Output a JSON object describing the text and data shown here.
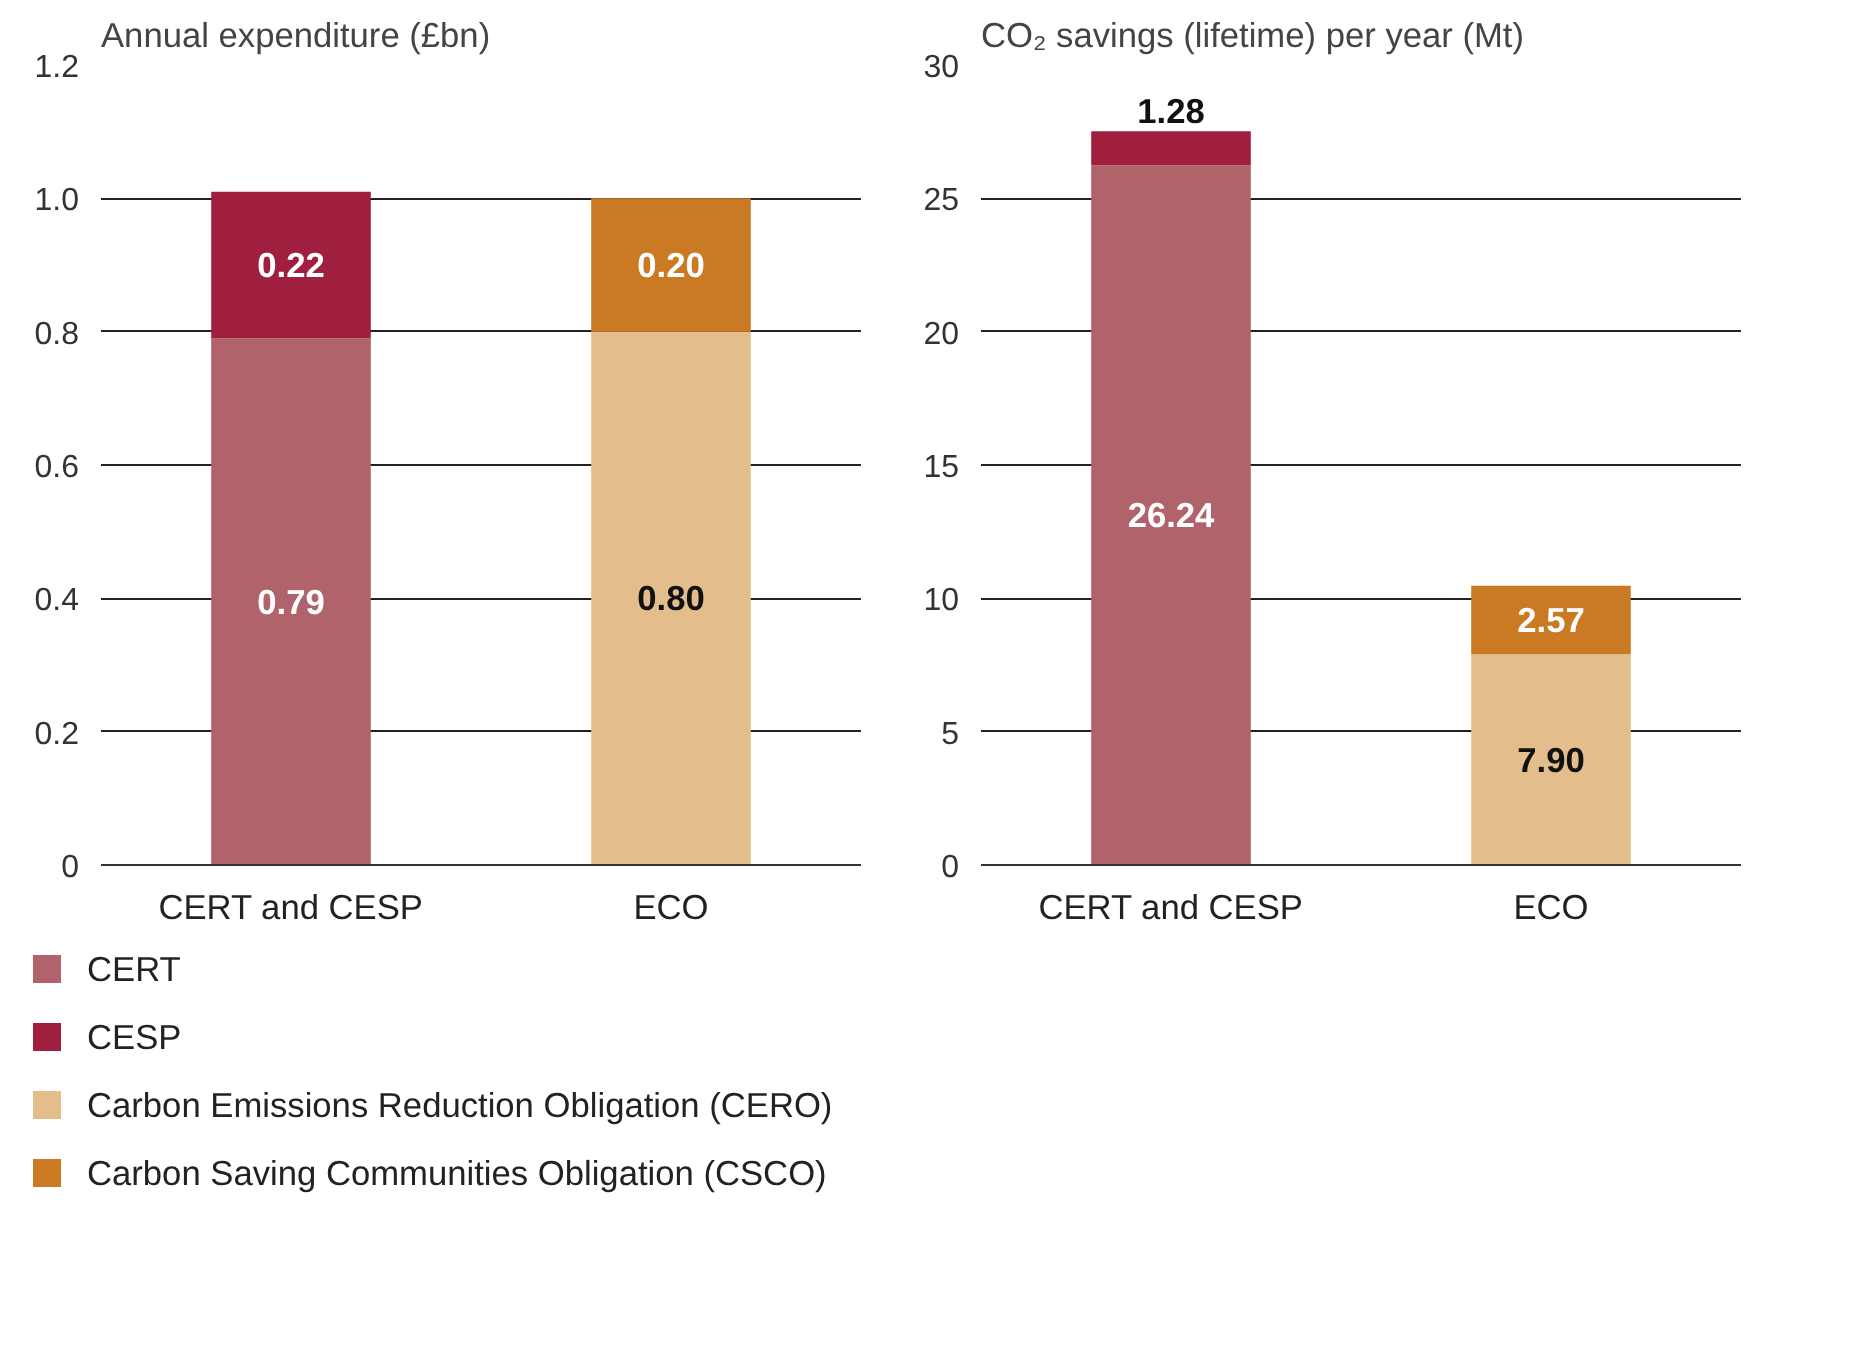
{
  "chart_data": [
    {
      "type": "bar",
      "stacked": true,
      "ylabel": "Annual expenditure (£bn)",
      "categories": [
        "CERT and CESP",
        "ECO"
      ],
      "ylim": [
        0,
        1.2
      ],
      "yticks": [
        0,
        0.2,
        0.4,
        0.6,
        0.8,
        {
          "value": 1,
          "label": "1.0"
        },
        1.2
      ],
      "grid": "y",
      "legend": "bottom",
      "series": [
        {
          "name": "CERT",
          "color": "#b0636a",
          "values": [
            0.79,
            null
          ],
          "value_labels": [
            "0.79",
            null
          ]
        },
        {
          "name": "CESP",
          "color": "#a01f3f",
          "values": [
            0.22,
            null
          ],
          "value_labels": [
            "0.22",
            null
          ]
        },
        {
          "name": "Carbon Emissions Reduction Obligation (CERO)",
          "color": "#e3bd8b",
          "values": [
            null,
            0.8
          ],
          "value_labels": [
            null,
            "0.80"
          ]
        },
        {
          "name": "Carbon Saving Communities Obligation (CSCO)",
          "color": "#c97a22",
          "values": [
            null,
            0.2
          ],
          "value_labels": [
            null,
            "0.20"
          ]
        }
      ]
    },
    {
      "type": "bar",
      "stacked": true,
      "ylabel": "CO₂ savings (lifetime) per year (Mt)",
      "categories": [
        "CERT and CESP",
        "ECO"
      ],
      "ylim": [
        0,
        30
      ],
      "yticks": [
        0,
        5,
        10,
        15,
        20,
        25,
        30
      ],
      "grid": "y",
      "series": [
        {
          "color": "#b0636a",
          "values": [
            26.24,
            null
          ],
          "value_labels": [
            "26.24",
            null
          ]
        },
        {
          "color": "#a01f3f",
          "values": [
            1.28,
            null
          ],
          "value_labels": [
            "1.28",
            null
          ]
        },
        {
          "color": "#e3bd8b",
          "values": [
            null,
            7.9
          ],
          "value_labels": [
            null,
            "7.90"
          ]
        },
        {
          "color": "#c97a22",
          "values": [
            null,
            2.57
          ],
          "value_labels": [
            null,
            "2.57"
          ]
        }
      ]
    }
  ]
}
